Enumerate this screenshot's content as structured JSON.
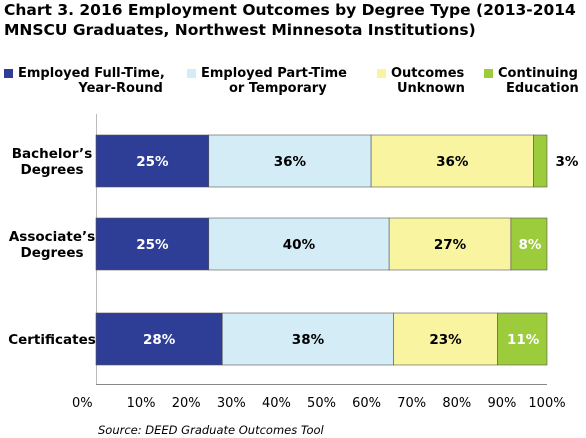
{
  "chart_data": {
    "type": "bar",
    "orientation": "horizontal",
    "stacked": true,
    "title_lines": [
      "Chart 3. 2016 Employment Outcomes by Degree Type (2013-2014",
      "MNSCU Graduates, Northwest Minnesota Institutions)"
    ],
    "categories": [
      "Bachelor’s Degrees",
      "Associate’s Degrees",
      "Certificates"
    ],
    "category_label_lines": [
      [
        "Bachelor’s",
        "Degrees"
      ],
      [
        "Associate’s",
        "Degrees"
      ],
      [
        "Certificates"
      ]
    ],
    "series": [
      {
        "name": "Employed Full-Time, Year-Round",
        "name_lines": [
          "Employed Full-Time,",
          "Year-Round"
        ],
        "values": [
          25,
          25,
          28
        ],
        "labels": [
          "25%",
          "25%",
          "28%"
        ],
        "color": "#2e3d96"
      },
      {
        "name": "Employed Part-Time or Temporary",
        "name_lines": [
          "Employed Part-Time",
          "or Temporary"
        ],
        "values": [
          36,
          40,
          38
        ],
        "labels": [
          "36%",
          "40%",
          "38%"
        ],
        "color": "#d3ecf6"
      },
      {
        "name": "Outcomes Unknown",
        "name_lines": [
          "Outcomes",
          "Unknown"
        ],
        "values": [
          36,
          27,
          23
        ],
        "labels": [
          "36%",
          "27%",
          "23%"
        ],
        "color": "#f8f4a0"
      },
      {
        "name": "Continuing Education",
        "name_lines": [
          "Continuing",
          "Education"
        ],
        "values": [
          3,
          8,
          11
        ],
        "labels": [
          "3%",
          "8%",
          "11%"
        ],
        "color": "#9ccb3c"
      }
    ],
    "xlim": [
      0,
      100
    ],
    "x_ticks": [
      "0%",
      "10%",
      "20%",
      "30%",
      "40%",
      "50%",
      "60%",
      "70%",
      "80%",
      "90%",
      "100%"
    ],
    "grid": false,
    "legend_position": "top"
  },
  "source": "Source: DEED Graduate Outcomes Tool"
}
